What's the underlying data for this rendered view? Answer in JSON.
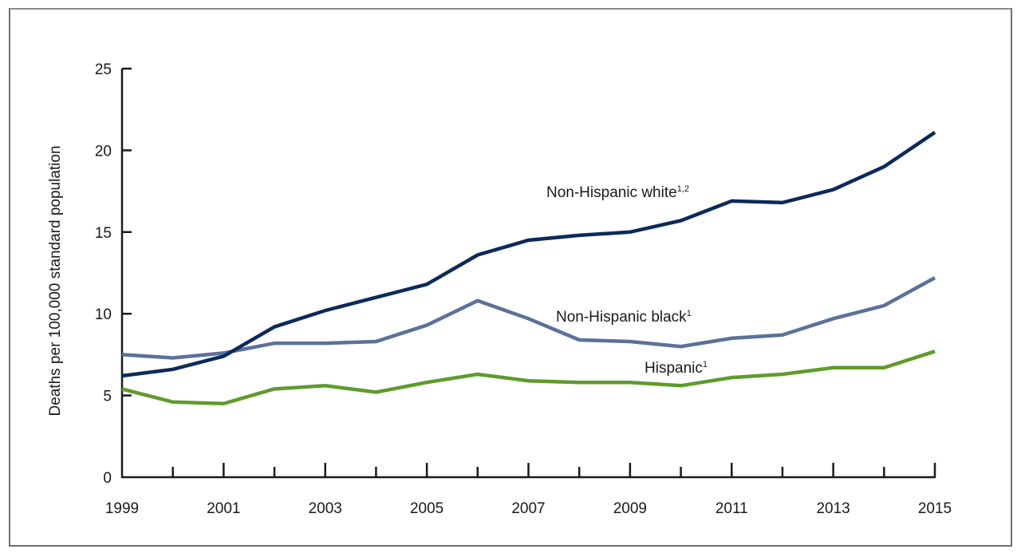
{
  "chart_data": {
    "type": "line",
    "title": "",
    "xlabel": "",
    "ylabel": "Deaths per 100,000 standard population",
    "x": [
      1999,
      2000,
      2001,
      2002,
      2003,
      2004,
      2005,
      2006,
      2007,
      2008,
      2009,
      2010,
      2011,
      2012,
      2013,
      2014,
      2015
    ],
    "xlim": [
      1999,
      2015
    ],
    "ylim": [
      0,
      25
    ],
    "x_tick_labels": [
      "1999",
      "2001",
      "2003",
      "2005",
      "2007",
      "2009",
      "2011",
      "2013",
      "2015"
    ],
    "y_tick_labels": [
      "0",
      "5",
      "10",
      "15",
      "20",
      "25"
    ],
    "grid": false,
    "series": [
      {
        "name": "Non-Hispanic white",
        "label": "Non-Hispanic white",
        "footnote": "1,2",
        "color": "#0b2a5b",
        "values": [
          6.2,
          6.6,
          7.4,
          9.2,
          10.2,
          11.0,
          11.8,
          13.6,
          14.5,
          14.8,
          15.0,
          15.7,
          16.9,
          16.8,
          17.6,
          19.0,
          21.1
        ]
      },
      {
        "name": "Non-Hispanic black",
        "label": "Non-Hispanic black",
        "footnote": "1",
        "color": "#5b7199",
        "values": [
          7.5,
          7.3,
          7.6,
          8.2,
          8.2,
          8.3,
          9.3,
          10.8,
          9.7,
          8.4,
          8.3,
          8.0,
          8.5,
          8.7,
          9.7,
          10.5,
          12.2
        ]
      },
      {
        "name": "Hispanic",
        "label": "Hispanic",
        "footnote": "1",
        "color": "#5e9b2c",
        "values": [
          5.4,
          4.6,
          4.5,
          5.4,
          5.6,
          5.2,
          5.8,
          6.3,
          5.9,
          5.8,
          5.8,
          5.6,
          6.1,
          6.3,
          6.7,
          6.7,
          7.7
        ]
      }
    ]
  }
}
